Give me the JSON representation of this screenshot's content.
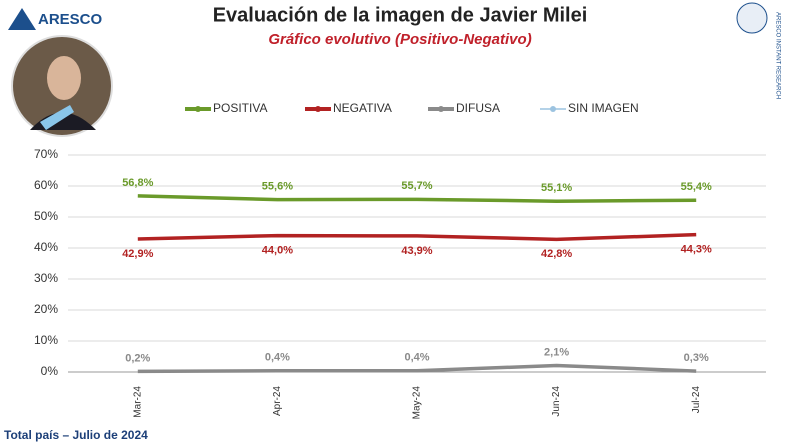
{
  "header": {
    "logo_left": "ARESCO",
    "logo_right": "ARESCO INSTANT RESEARCH"
  },
  "footer": "Total país – Julio de 2024",
  "chart_data": {
    "type": "line",
    "title": "Evaluación de la imagen de Javier Milei",
    "subtitle": "Gráfico evolutivo (Positivo-Negativo)",
    "categories": [
      "Mar-24",
      "Apr-24",
      "May-24",
      "Jun-24",
      "Jul-24"
    ],
    "series": [
      {
        "name": "POSITIVA",
        "color": "#6a9a2a",
        "values": [
          56.8,
          55.6,
          55.7,
          55.1,
          55.4
        ],
        "value_labels": [
          "56,8%",
          "55,6%",
          "55,7%",
          "55,1%",
          "55,4%"
        ]
      },
      {
        "name": "NEGATIVA",
        "color": "#b22222",
        "values": [
          42.9,
          44.0,
          43.9,
          42.8,
          44.3
        ],
        "value_labels": [
          "42,9%",
          "44,0%",
          "43,9%",
          "42,8%",
          "44,3%"
        ]
      },
      {
        "name": "DIFUSA",
        "color": "#8a8a8a",
        "values": [
          0.2,
          0.4,
          0.4,
          2.1,
          0.3
        ],
        "value_labels": [
          "0,2%",
          "0,4%",
          "0,4%",
          "2,1%",
          "0,3%"
        ]
      },
      {
        "name": "SIN IMAGEN",
        "color": "#9cc3e0",
        "values": [
          null,
          null,
          null,
          null,
          null
        ]
      }
    ],
    "ylim": [
      0,
      70
    ],
    "yticks": [
      {
        "value": 0,
        "label": "0%"
      },
      {
        "value": 10,
        "label": "10%"
      },
      {
        "value": 20,
        "label": "20%"
      },
      {
        "value": 30,
        "label": "30%"
      },
      {
        "value": 40,
        "label": "40%"
      },
      {
        "value": 50,
        "label": "50%"
      },
      {
        "value": 60,
        "label": "60%"
      },
      {
        "value": 70,
        "label": "70%"
      }
    ],
    "grid": true,
    "legend": "top"
  }
}
